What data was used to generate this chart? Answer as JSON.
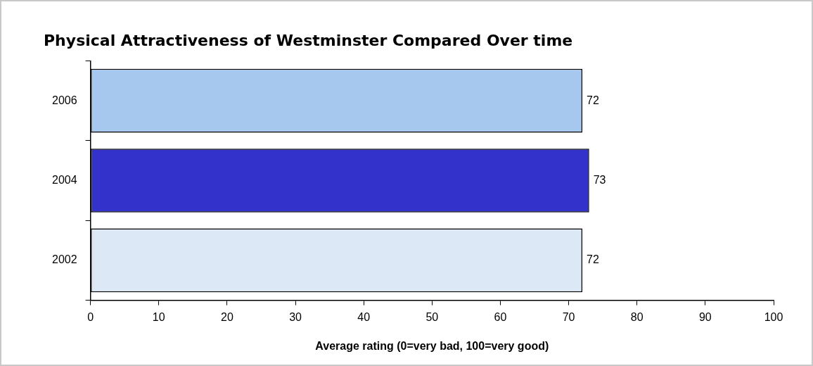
{
  "chart_data": {
    "type": "bar",
    "orientation": "horizontal",
    "title": "Physical Attractiveness of Westminster Compared Over time",
    "xlabel": "Average rating (0=very bad, 100=very good)",
    "categories": [
      "2006",
      "2004",
      "2002"
    ],
    "values": [
      72,
      73,
      72
    ],
    "colors": [
      "#a6c8ee",
      "#3333cc",
      "#dce8f6"
    ],
    "xlim": [
      0,
      100
    ],
    "xticks": [
      0,
      10,
      20,
      30,
      40,
      50,
      60,
      70,
      80,
      90,
      100
    ],
    "data_labels": true,
    "grid": false,
    "legend": false
  }
}
